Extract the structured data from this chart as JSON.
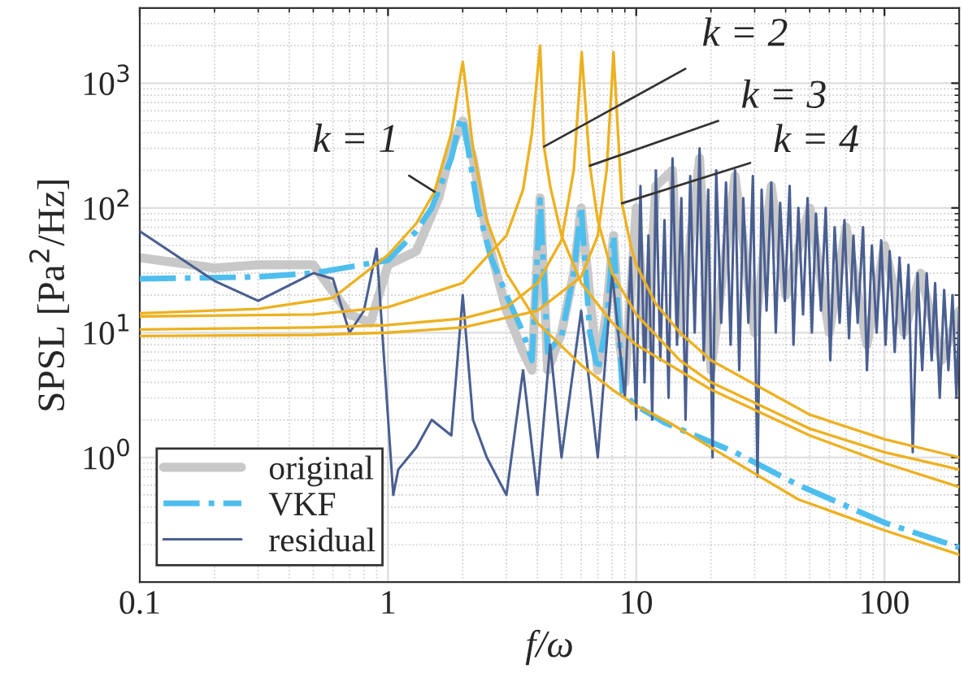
{
  "chart_data": {
    "type": "line",
    "xlabel": "f/ω",
    "ylabel": "SPSL [Pa$^{2}$/Hz]",
    "log": "xy",
    "grid": true,
    "legend": "bottom left",
    "xlim": [
      0.1,
      200
    ],
    "xticks": [
      0.1,
      1,
      10,
      100
    ],
    "ylim": [
      0.1,
      4000
    ],
    "yticks": [
      {
        "value": 1,
        "label": "10$^{0}$"
      },
      {
        "value": 10,
        "label": "10$^{1}$"
      },
      {
        "value": 100,
        "label": "10$^{2}$"
      },
      {
        "value": 1000,
        "label": "10$^{3}$"
      }
    ],
    "annotations": [
      {
        "text": "k = 1",
        "x": 1.54,
        "y": 135
      },
      {
        "text": "k = 2",
        "x": 4.25,
        "y": 310
      },
      {
        "text": "k = 3",
        "x": 6.5,
        "y": 218
      },
      {
        "text": "k = 4",
        "x": 8.76,
        "y": 109
      }
    ],
    "series": [
      {
        "name": "original",
        "color": "#c8c8c8",
        "line_style": "solid",
        "x": [
          0.1,
          0.2,
          0.3,
          0.5,
          0.7,
          0.85,
          1,
          1.3,
          1.6,
          1.8,
          2,
          2.2,
          2.5,
          3,
          3.5,
          3.8,
          4.1,
          4.4,
          5,
          5.6,
          6,
          6.5,
          7,
          7.6,
          8.1,
          8.6,
          9,
          10,
          11,
          12,
          14,
          15,
          18,
          20,
          25,
          30,
          35,
          40,
          50,
          60,
          70,
          85,
          100,
          120,
          140,
          170,
          200
        ],
        "values": [
          40,
          33,
          35,
          35,
          14,
          12,
          35,
          45,
          120,
          300,
          500,
          250,
          60,
          15,
          7,
          5,
          120,
          5,
          10,
          30,
          100,
          20,
          5,
          15,
          60,
          8,
          4,
          100,
          8,
          150,
          200,
          10,
          250,
          5,
          180,
          10,
          150,
          20,
          100,
          10,
          70,
          8,
          50,
          10,
          30,
          6,
          15
        ]
      },
      {
        "name": "VKF",
        "color": "#4dbeee",
        "line_style": "dashdot",
        "x": [
          0.1,
          0.3,
          0.5,
          1,
          1.3,
          1.5,
          1.8,
          1.95,
          2,
          2.1,
          2.3,
          2.6,
          3,
          3.5,
          3.8,
          4.1,
          4.4,
          5,
          5.6,
          6,
          6.5,
          7,
          7.6,
          8.1,
          8.8,
          10,
          13,
          18,
          25,
          45,
          100,
          200
        ],
        "values": [
          27,
          28,
          30,
          38,
          65,
          100,
          250,
          500,
          530,
          300,
          100,
          40,
          20,
          10,
          6,
          116,
          7,
          9.4,
          30,
          103,
          10,
          5,
          12,
          60,
          3.3,
          2.6,
          1.9,
          1.45,
          1.1,
          0.6,
          0.3,
          0.19
        ]
      },
      {
        "name": "residual",
        "color": "#4a5f91",
        "line_style": "solid",
        "x": [
          0.1,
          0.2,
          0.3,
          0.5,
          0.6,
          0.7,
          0.8,
          0.9,
          1.05,
          1.1,
          1.3,
          1.5,
          1.8,
          2.0,
          2.2,
          2.5,
          3,
          3.5,
          4,
          4.5,
          5,
          6,
          7,
          8,
          9.0,
          9.5,
          10,
          10.4,
          10.8,
          11.2,
          11.6,
          12,
          12.5,
          13,
          13.5,
          14,
          14.6,
          15.2,
          15.8,
          16.5,
          17.2,
          18,
          18.7,
          19.5,
          20.3,
          21,
          22,
          23,
          24,
          25,
          26,
          27,
          28.3,
          29.5,
          30.8,
          32,
          33.5,
          35,
          36.5,
          38,
          39.7,
          41.5,
          43,
          45,
          47,
          49,
          51,
          53,
          55.5,
          58,
          60.5,
          63,
          66,
          69,
          72,
          75,
          78,
          82,
          85,
          89,
          93,
          97,
          101,
          105,
          110,
          115,
          120,
          125,
          130,
          136,
          142,
          148,
          155,
          160,
          167,
          174,
          181,
          188,
          195,
          200
        ],
        "values": [
          65,
          26,
          18,
          30,
          27,
          10,
          15,
          47,
          0.5,
          0.8,
          1.2,
          2,
          1.5,
          20,
          2,
          1,
          0.5,
          5,
          0.5,
          8,
          1,
          15,
          1,
          30,
          3,
          40,
          2,
          150,
          4,
          60,
          2,
          200,
          6,
          80,
          3,
          250,
          8,
          120,
          2,
          180,
          10,
          300,
          6,
          140,
          1,
          200,
          12,
          160,
          8,
          200,
          5,
          120,
          12,
          180,
          0.7,
          140,
          15,
          160,
          10,
          110,
          18,
          150,
          8,
          100,
          14,
          120,
          10,
          90,
          15,
          100,
          6,
          70,
          12,
          80,
          9,
          60,
          12,
          70,
          5,
          50,
          10,
          55,
          8,
          45,
          7,
          40,
          9,
          35,
          1.1,
          30,
          5,
          30,
          6,
          25,
          3,
          22,
          5,
          20,
          3,
          15
        ]
      },
      {
        "color": "#edb120",
        "line_style": "solid",
        "x": [
          0.1,
          0.3,
          0.6,
          1,
          1.3,
          1.54,
          1.8,
          1.95,
          2,
          2.05,
          2.2,
          2.5,
          3,
          4,
          6,
          8,
          10,
          13.6,
          20,
          45,
          100,
          200
        ],
        "values": [
          14.3,
          15.5,
          19,
          42,
          75,
          135,
          400,
          1100,
          1480,
          1000,
          300,
          80,
          30,
          12,
          5.5,
          3.5,
          2.6,
          1.9,
          1.2,
          0.46,
          0.26,
          0.166
        ]
      },
      {
        "color": "#edb120",
        "line_style": "solid",
        "x": [
          0.1,
          0.5,
          1,
          2,
          3,
          3.5,
          3.8,
          4.0,
          4.1,
          4.25,
          4.5,
          5,
          6,
          8,
          10,
          20,
          50,
          100,
          200
        ],
        "values": [
          13.5,
          14,
          16,
          25,
          60,
          140,
          400,
          1200,
          2000,
          310,
          150,
          60,
          25,
          12,
          8,
          3.5,
          1.5,
          0.9,
          0.58
        ]
      },
      {
        "color": "#edb120",
        "line_style": "solid",
        "x": [
          0.1,
          0.5,
          1,
          2,
          3,
          4,
          5,
          5.6,
          5.9,
          6.03,
          6.5,
          7,
          8,
          10,
          15,
          20,
          50,
          100,
          200
        ],
        "values": [
          10.6,
          11,
          11.5,
          13,
          16,
          25,
          55,
          200,
          900,
          1770,
          218,
          80,
          30,
          14,
          6,
          4,
          1.7,
          1.1,
          0.8
        ]
      },
      {
        "color": "#edb120",
        "line_style": "solid",
        "x": [
          0.1,
          0.5,
          1,
          2,
          4,
          6,
          7,
          7.6,
          7.95,
          8.1,
          8.76,
          9.5,
          10,
          12,
          15,
          20,
          50,
          100,
          200
        ],
        "values": [
          9.4,
          9.6,
          10,
          11,
          15,
          28,
          60,
          200,
          900,
          1770,
          109,
          50,
          35,
          17,
          10,
          6,
          2.2,
          1.4,
          1.0
        ]
      }
    ]
  }
}
